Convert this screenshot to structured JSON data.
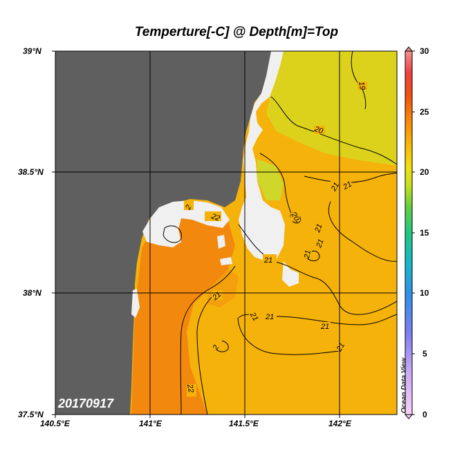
{
  "title": "Temperture[-C] @ Depth[m]=Top",
  "date_label": "20170917",
  "watermark": "Ocean Data View",
  "latitude_labels": [
    "39°N",
    "38.5°N",
    "38°N",
    "37.5°N"
  ],
  "longitude_labels": [
    "140.5°E",
    "141°E",
    "141.5°E",
    "142°E"
  ],
  "colorbar": {
    "labels": [
      "30",
      "25",
      "20",
      "15",
      "10",
      "5",
      "0"
    ],
    "min": 0,
    "max": 30,
    "colors": [
      "#f8d0f8",
      "#c8a8f8",
      "#8080f0",
      "#3090e8",
      "#18b8c8",
      "#20c880",
      "#60d040",
      "#c8e020",
      "#f0e010",
      "#f8b808",
      "#f88008",
      "#f05010",
      "#f04040",
      "#f49090"
    ]
  },
  "contour_labels": [
    "19",
    "20",
    "20",
    "21",
    "21",
    "21",
    "21",
    "21",
    "21",
    "21",
    "21",
    "21",
    "21",
    "21",
    "22",
    "22",
    "2",
    "2"
  ],
  "colors": {
    "land": "#5f5f5f",
    "no_data": "#f0f0f0",
    "warm_water": "#f2880e",
    "mid_water": "#f5b20a",
    "cool_water": "#d6d81e"
  }
}
